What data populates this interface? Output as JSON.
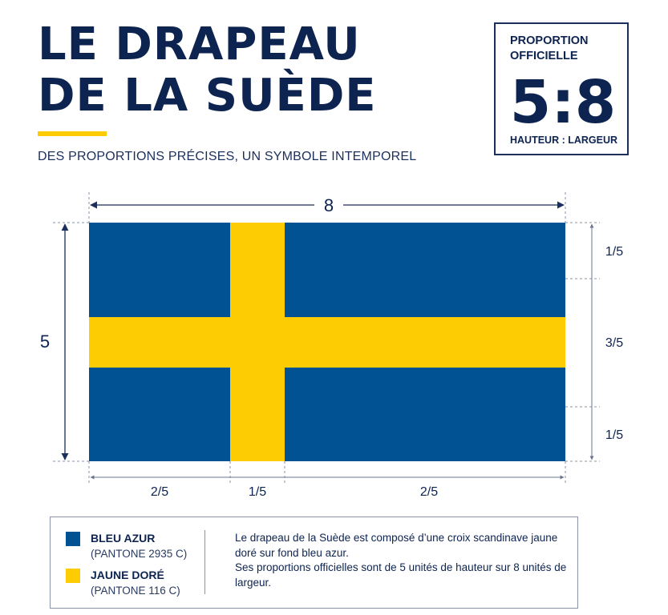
{
  "header": {
    "title_line1": "LE DRAPEAU",
    "title_line2": "DE LA SUÈDE",
    "subtitle": "DES PROPORTIONS PRÉCISES, UN SYMBOLE INTEMPOREL"
  },
  "ratio_box": {
    "label": "PROPORTION OFFICIELLE",
    "value": "5:8",
    "caption": "HAUTEUR : LARGEUR"
  },
  "flag": {
    "width_units": 8,
    "height_units": 5,
    "blue": "#005293",
    "yellow": "#fecc02",
    "width_label": "8",
    "height_label": "5",
    "vertical_segments": [
      "1/5",
      "3/5",
      "1/5"
    ],
    "horizontal_segments": [
      "2/5",
      "1/5",
      "2/5"
    ]
  },
  "legend": {
    "blue_name": "BLEU AZUR",
    "blue_code": "(PANTONE 2935 C)",
    "yellow_name": "JAUNE DORÉ",
    "yellow_code": "(PANTONE 116 C)",
    "description_line1": "Le drapeau de la Suède est composé d’une croix scandinave jaune doré sur fond bleu azur.",
    "description_line2": "Ses proportions officielles sont de 5 unités de hauteur sur 8 unités de largeur."
  }
}
